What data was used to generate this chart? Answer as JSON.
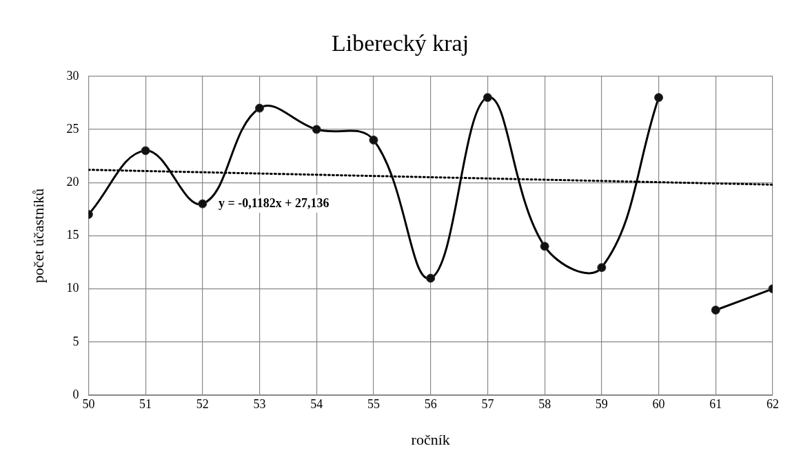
{
  "chart_data": {
    "type": "line",
    "title": "Liberecký kraj",
    "xlabel": "ročník",
    "ylabel": "počet účastníků",
    "xlim": [
      50,
      62
    ],
    "xticks": [
      50,
      51,
      52,
      53,
      54,
      55,
      56,
      57,
      58,
      59,
      60,
      61,
      62
    ],
    "ylim": [
      0,
      30
    ],
    "yticks": [
      0,
      5,
      10,
      15,
      20,
      25,
      30
    ],
    "grid": true,
    "legend": false,
    "marker": "circle",
    "series": [
      {
        "color": "#000000",
        "x": [
          50,
          51,
          52,
          53,
          54,
          55,
          56,
          57,
          58,
          59,
          60
        ],
        "values": [
          17,
          23,
          18,
          27,
          25,
          24,
          11,
          28,
          14,
          12,
          28
        ]
      },
      {
        "color": "#000000",
        "x": [
          61,
          62
        ],
        "values": [
          8,
          10
        ]
      },
      {
        "color": "#000000",
        "x": [
          50,
          62
        ],
        "values": [
          21.2,
          19.8
        ],
        "line_style": "dotted",
        "marker": "none"
      }
    ],
    "annotations": [
      "y = -0,1182x + 27,136"
    ]
  }
}
